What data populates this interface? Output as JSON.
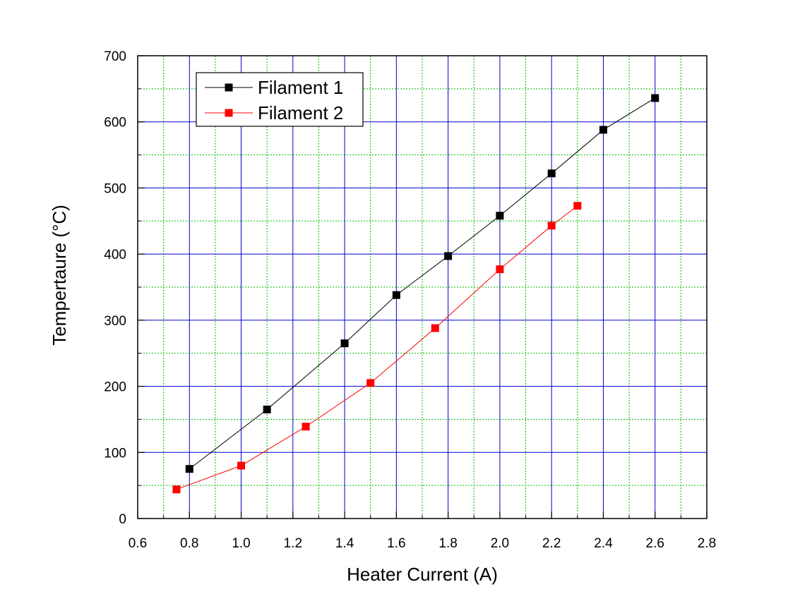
{
  "chart_data": {
    "type": "line",
    "title": "",
    "xlabel": "Heater Current (A)",
    "ylabel": "Tempertaure (°C)",
    "xlim": [
      0.6,
      2.8
    ],
    "ylim": [
      0,
      700
    ],
    "x_ticks": [
      0.6,
      0.8,
      1.0,
      1.2,
      1.4,
      1.6,
      1.8,
      2.0,
      2.2,
      2.4,
      2.6,
      2.8
    ],
    "x_tick_labels": [
      "0.6",
      "0.8",
      "1.0",
      "1.2",
      "1.4",
      "1.6",
      "1.8",
      "2.0",
      "2.2",
      "2.4",
      "2.6",
      "2.8"
    ],
    "y_ticks": [
      0,
      100,
      200,
      300,
      400,
      500,
      600,
      700
    ],
    "y_tick_labels": [
      "0",
      "100",
      "200",
      "300",
      "400",
      "500",
      "600",
      "700"
    ],
    "grid": {
      "major": true,
      "minor": true,
      "major_color": "#0000cc",
      "minor_color": "#00bb00"
    },
    "legend_position": "top-left",
    "series": [
      {
        "name": "Filament 1",
        "color": "#000000",
        "marker": "square",
        "x": [
          0.8,
          1.1,
          1.4,
          1.6,
          1.8,
          2.0,
          2.2,
          2.4,
          2.6
        ],
        "y": [
          75,
          165,
          265,
          338,
          397,
          458,
          522,
          588,
          636
        ]
      },
      {
        "name": "Filament 2",
        "color": "#ff0000",
        "marker": "square",
        "x": [
          0.75,
          1.0,
          1.25,
          1.5,
          1.75,
          2.0,
          2.2,
          2.3
        ],
        "y": [
          44,
          80,
          139,
          205,
          288,
          377,
          443,
          473
        ]
      }
    ]
  }
}
